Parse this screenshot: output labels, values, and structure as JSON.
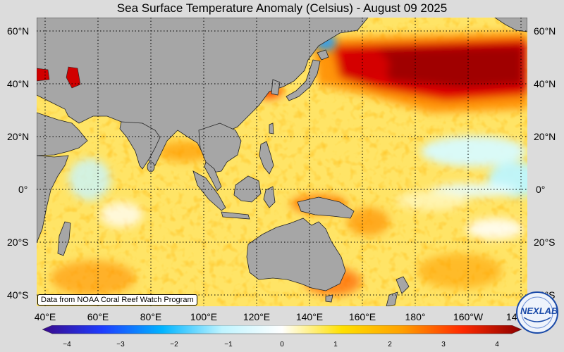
{
  "title": "Sea Surface Temperature Anomaly (Celsius) - August 09 2025",
  "credit": "Data from NOAA Coral Reef Watch Program",
  "logo_text": "NEXLAB",
  "latitude_labels": {
    "left": [
      "60°N",
      "40°N",
      "20°N",
      "0°",
      "20°S",
      "40°S"
    ],
    "right": [
      "60°N",
      "40°N",
      "20°N",
      "0°",
      "20°S",
      "40°S"
    ]
  },
  "longitude_labels": [
    "40°E",
    "60°E",
    "80°E",
    "100°E",
    "120°E",
    "140°E",
    "160°E",
    "180°",
    "160°W",
    "140°W"
  ],
  "colorbar": {
    "min": -4,
    "max": 4,
    "ticks": [
      "−4",
      "−3",
      "−2",
      "−1",
      "0",
      "1",
      "2",
      "3",
      "4"
    ],
    "colors": [
      "#3a0a8a",
      "#1e3cff",
      "#00b4ff",
      "#bff4ff",
      "#ffffff",
      "#ffe000",
      "#ffa000",
      "#ff2a00",
      "#8b0000"
    ]
  },
  "colors": {
    "land": "#a6a6a6",
    "ocean_base": "#ffe76a",
    "strong_warm": "#c80000"
  }
}
